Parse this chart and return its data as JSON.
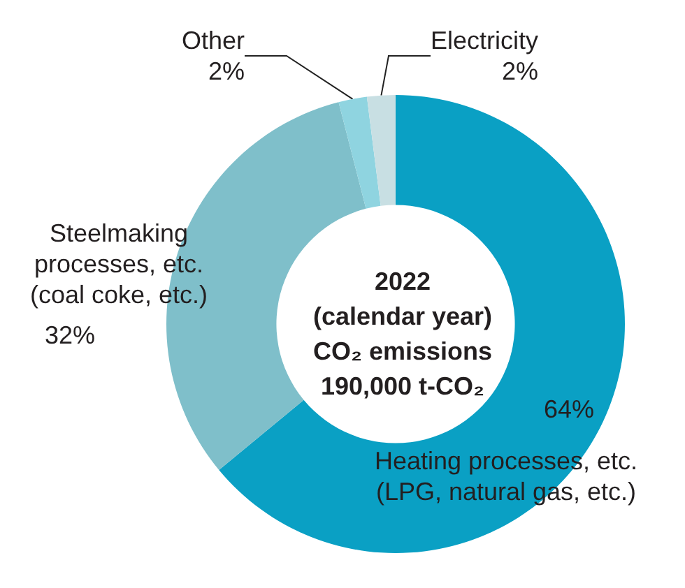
{
  "chart_data": {
    "type": "donut",
    "categories": [
      "Heating processes, etc.\n(LPG, natural gas, etc.)",
      "Steelmaking\nprocesses, etc.\n(coal coke, etc.)",
      "Other",
      "Electricity"
    ],
    "values": [
      64,
      32,
      2,
      2
    ],
    "value_labels": [
      "64%",
      "32%",
      "2%",
      "2%"
    ],
    "colors": [
      "#0aa0c4",
      "#7fbfca",
      "#8fd4e0",
      "#c8dfe3"
    ],
    "annotations": [
      "2022",
      "(calendar year)",
      "CO₂ emissions",
      "190,000 t-CO₂"
    ],
    "legend": false
  }
}
